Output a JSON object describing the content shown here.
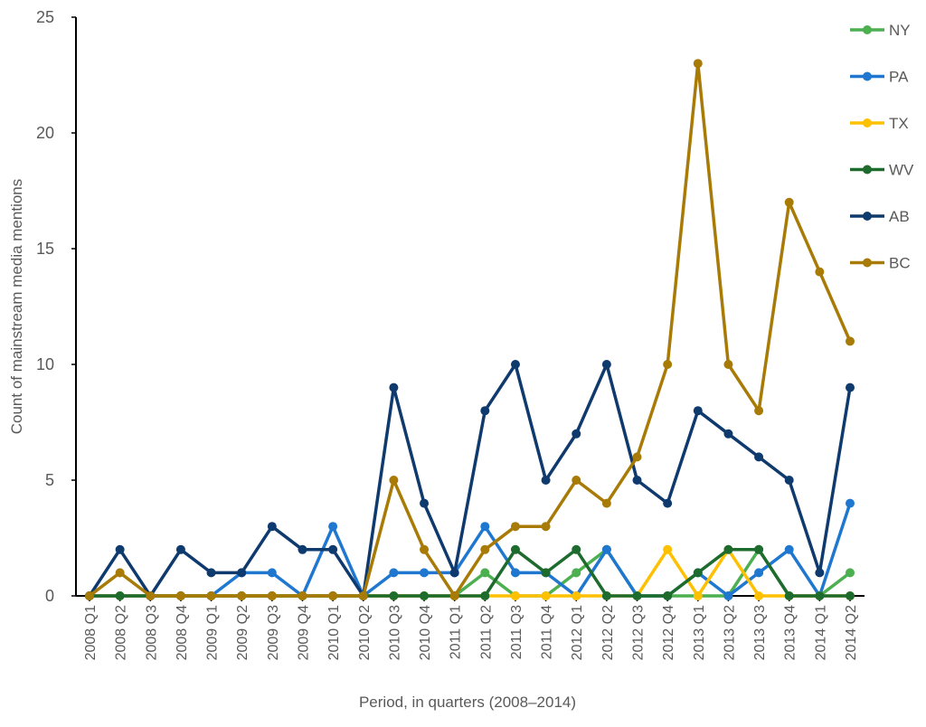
{
  "chart_data": {
    "type": "line",
    "title": "",
    "xlabel": "Period, in quarters (2008–2014)",
    "ylabel": "Count of mainstream media mentions",
    "ylim": [
      0,
      25
    ],
    "yticks": [
      0,
      5,
      10,
      15,
      20,
      25
    ],
    "grid": false,
    "legend_position": "right",
    "categories": [
      "2008 Q1",
      "2008 Q2",
      "2008 Q3",
      "2008 Q4",
      "2009 Q1",
      "2009 Q2",
      "2009 Q3",
      "2009 Q4",
      "2010 Q1",
      "2010 Q2",
      "2010 Q3",
      "2010 Q4",
      "2011 Q1",
      "2011 Q2",
      "2011 Q3",
      "2011 Q4",
      "2012 Q1",
      "2012 Q2",
      "2012 Q3",
      "2012 Q4",
      "2013 Q1",
      "2013 Q2",
      "2013 Q3",
      "2013 Q4",
      "2014 Q1",
      "2014 Q2"
    ],
    "series": [
      {
        "name": "NY",
        "color": "#4caf50",
        "values": [
          0,
          0,
          0,
          0,
          0,
          0,
          0,
          0,
          0,
          0,
          0,
          0,
          0,
          1,
          0,
          0,
          1,
          2,
          0,
          0,
          0,
          0,
          2,
          0,
          0,
          1
        ]
      },
      {
        "name": "PA",
        "color": "#1f77d0",
        "values": [
          0,
          0,
          0,
          0,
          0,
          1,
          1,
          0,
          3,
          0,
          1,
          1,
          1,
          3,
          1,
          1,
          0,
          2,
          0,
          0,
          1,
          0,
          1,
          2,
          0,
          4
        ]
      },
      {
        "name": "TX",
        "color": "#ffc000",
        "values": [
          0,
          0,
          0,
          0,
          0,
          0,
          0,
          0,
          0,
          0,
          0,
          0,
          0,
          0,
          0,
          0,
          0,
          0,
          0,
          2,
          0,
          2,
          0,
          0,
          0,
          0
        ]
      },
      {
        "name": "WV",
        "color": "#1e6b2e",
        "values": [
          0,
          0,
          0,
          0,
          0,
          0,
          0,
          0,
          0,
          0,
          0,
          0,
          0,
          0,
          2,
          1,
          2,
          0,
          0,
          0,
          1,
          2,
          2,
          0,
          0,
          0
        ]
      },
      {
        "name": "AB",
        "color": "#0f3a6e",
        "values": [
          0,
          2,
          0,
          2,
          1,
          1,
          3,
          2,
          2,
          0,
          9,
          4,
          1,
          8,
          10,
          5,
          7,
          10,
          5,
          4,
          8,
          7,
          6,
          5,
          1,
          9
        ]
      },
      {
        "name": "BC",
        "color": "#a87a06",
        "values": [
          0,
          1,
          0,
          0,
          0,
          0,
          0,
          0,
          0,
          0,
          5,
          2,
          0,
          2,
          3,
          3,
          5,
          4,
          6,
          10,
          23,
          10,
          8,
          17,
          14,
          11
        ]
      }
    ]
  }
}
